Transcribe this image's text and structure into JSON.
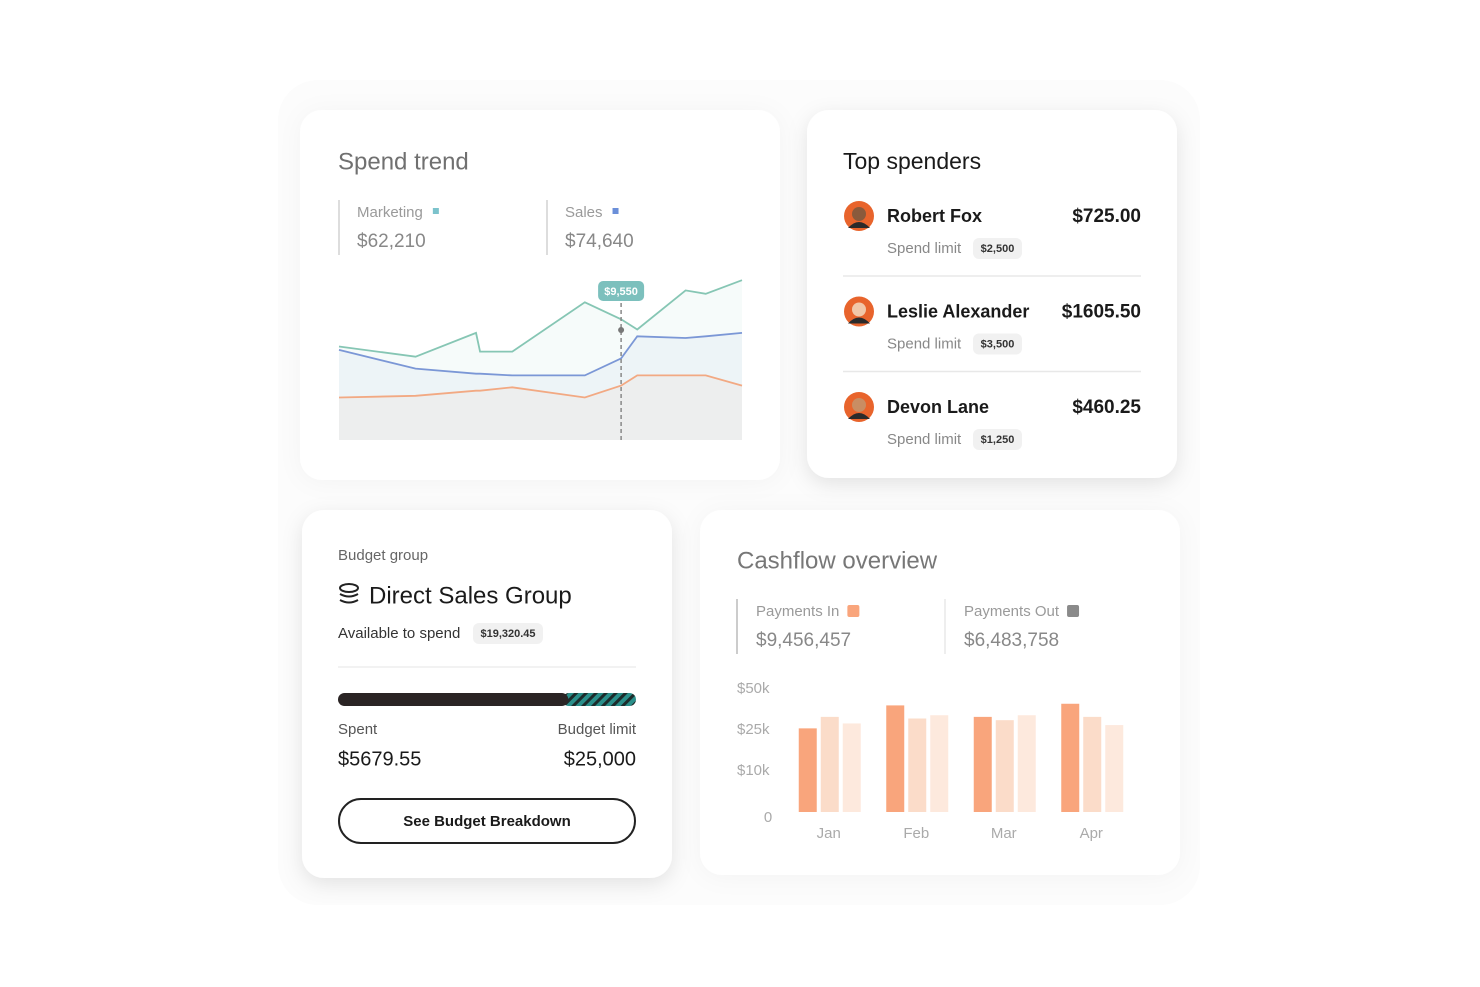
{
  "chart_data": [
    {
      "type": "line",
      "title": "Spend trend",
      "x": [
        0,
        19,
        34,
        35,
        43,
        61,
        70,
        74,
        86,
        91,
        100
      ],
      "xlim": [
        0,
        100
      ],
      "ylim": [
        0,
        100
      ],
      "series": [
        {
          "name": "Marketing",
          "color": "#86c6b4",
          "legend_color": "#7cc3cc",
          "total": "$62,210",
          "values": [
            55,
            49,
            63,
            52,
            52,
            81,
            71,
            65,
            88,
            86,
            94
          ]
        },
        {
          "name": "Sales",
          "color": "#7b97d6",
          "legend_color": "#6b8fd9",
          "total": "$74,640",
          "values": [
            53,
            42,
            39,
            39,
            38,
            38,
            48,
            61,
            60,
            61,
            63
          ]
        },
        {
          "color": "#f2a983",
          "values": [
            25,
            26,
            29,
            29,
            31,
            25,
            32,
            38,
            38,
            38,
            32
          ]
        }
      ],
      "tooltip": {
        "x": 70,
        "label": "$9,550",
        "color": "#7cc0bd"
      }
    },
    {
      "type": "bar",
      "title": "Cashflow overview",
      "legend": [
        {
          "name": "Payments In",
          "color": "#f9a57c",
          "total": "$9,456,457"
        },
        {
          "name": "Payments Out",
          "color": "#8a8a8a",
          "total": "$6,483,758"
        }
      ],
      "categories": [
        "Jan",
        "Feb",
        "Mar",
        "Apr"
      ],
      "series": [
        {
          "color": "#f9a57c",
          "values": [
            26000,
            40000,
            33000,
            41000
          ]
        },
        {
          "color": "#fbdcc9",
          "values": [
            33000,
            32000,
            31000,
            33000
          ]
        },
        {
          "color": "#fde9dd",
          "values": [
            29000,
            34000,
            34000,
            28000
          ]
        }
      ],
      "ylim": [
        0,
        50000
      ],
      "yticks": [
        {
          "value": 50000,
          "label": "$50k"
        },
        {
          "value": 25000,
          "label": "$25k"
        },
        {
          "value": 10000,
          "label": "$10k"
        },
        0
      ]
    }
  ],
  "top_spenders": {
    "title": "Top spenders",
    "rows": [
      {
        "name": "Robert Fox",
        "amount": "$725.00",
        "limit_label": "Spend limit",
        "limit": "$2,500"
      },
      {
        "name": "Leslie Alexander",
        "amount": "$1605.50",
        "limit_label": "Spend limit",
        "limit": "$3,500"
      },
      {
        "name": "Devon Lane",
        "amount": "$460.25",
        "limit_label": "Spend limit",
        "limit": "$1,250"
      }
    ]
  },
  "budget_group": {
    "label": "Budget group",
    "name": "Direct Sales Group",
    "available_label": "Available to spend",
    "available": "$19,320.45",
    "spent_label": "Spent",
    "spent": "$5679.55",
    "limit_label": "Budget limit",
    "limit": "$25,000",
    "button": "See Budget Breakdown"
  }
}
